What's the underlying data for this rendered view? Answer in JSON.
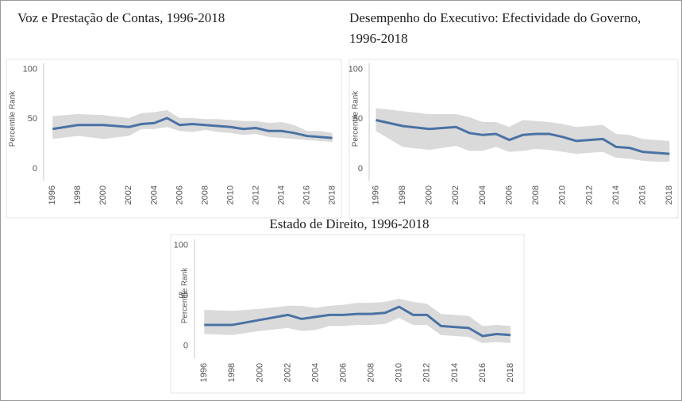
{
  "chart_data": [
    {
      "type": "line",
      "title": "Voz e Prestação de Contas, 1996-2018",
      "ylabel": "Percentile Rank",
      "x": [
        1996,
        1998,
        2000,
        2002,
        2003,
        2004,
        2005,
        2006,
        2007,
        2008,
        2009,
        2010,
        2011,
        2012,
        2013,
        2014,
        2015,
        2016,
        2017,
        2018
      ],
      "values": [
        40,
        44,
        44,
        42,
        45,
        46,
        51,
        44,
        45,
        44,
        43,
        42,
        40,
        41,
        38,
        38,
        36,
        33,
        32,
        31
      ],
      "lower": [
        30,
        33,
        30,
        33,
        40,
        40,
        42,
        38,
        37,
        39,
        37,
        36,
        34,
        35,
        32,
        31,
        30,
        29,
        28,
        27
      ],
      "upper": [
        53,
        55,
        54,
        51,
        56,
        57,
        59,
        51,
        51,
        50,
        50,
        49,
        48,
        48,
        46,
        47,
        44,
        38,
        38,
        36
      ],
      "color": "#4a72a4",
      "band_color": "#dadada",
      "xlim": [
        1995.3,
        2018.4
      ],
      "xticks": [
        1996,
        1998,
        2000,
        2002,
        2004,
        2006,
        2008,
        2010,
        2012,
        2014,
        2016,
        2018
      ],
      "ylim": [
        -12,
        106
      ],
      "yticks": [
        0,
        50,
        100
      ]
    },
    {
      "type": "line",
      "title": "Desempenho do Executivo: Efectividade do Governo, 1996-2018",
      "ylabel": "Percentile Rank",
      "x": [
        1996,
        1998,
        2000,
        2002,
        2003,
        2004,
        2005,
        2006,
        2007,
        2008,
        2009,
        2010,
        2011,
        2012,
        2013,
        2014,
        2015,
        2016,
        2017,
        2018
      ],
      "values": [
        49,
        43,
        40,
        42,
        36,
        34,
        35,
        29,
        34,
        35,
        35,
        32,
        28,
        29,
        30,
        22,
        21,
        17,
        16,
        15
      ],
      "lower": [
        38,
        22,
        19,
        23,
        18,
        18,
        22,
        17,
        18,
        20,
        19,
        17,
        15,
        16,
        17,
        11,
        10,
        8,
        7,
        7
      ],
      "upper": [
        61,
        58,
        55,
        55,
        52,
        47,
        47,
        42,
        49,
        48,
        47,
        45,
        42,
        43,
        44,
        35,
        34,
        30,
        29,
        28
      ],
      "color": "#4a72a4",
      "band_color": "#dadada",
      "xlim": [
        1995.5,
        2018.4
      ],
      "xticks": [
        1996,
        1998,
        2000,
        2002,
        2004,
        2006,
        2008,
        2010,
        2012,
        2014,
        2016,
        2018
      ],
      "ylim": [
        -12,
        106
      ],
      "yticks": [
        0,
        50,
        100
      ]
    },
    {
      "type": "line",
      "title": "Estado de Direito, 1996-2018",
      "ylabel": "Percentile Rank",
      "x": [
        1996,
        1998,
        2000,
        2002,
        2003,
        2004,
        2005,
        2006,
        2007,
        2008,
        2009,
        2010,
        2011,
        2012,
        2013,
        2014,
        2015,
        2016,
        2017,
        2018
      ],
      "values": [
        21,
        21,
        26,
        31,
        27,
        29,
        31,
        31,
        32,
        32,
        33,
        39,
        31,
        31,
        20,
        19,
        18,
        10,
        12,
        11
      ],
      "lower": [
        12,
        11,
        15,
        18,
        15,
        16,
        20,
        20,
        21,
        21,
        22,
        28,
        21,
        21,
        11,
        10,
        9,
        3,
        4,
        3
      ],
      "upper": [
        36,
        35,
        37,
        40,
        40,
        38,
        40,
        41,
        43,
        43,
        44,
        47,
        44,
        42,
        32,
        31,
        30,
        20,
        21,
        20
      ],
      "color": "#4a72a4",
      "band_color": "#dadada",
      "xlim": [
        1995.3,
        2018.4
      ],
      "xticks": [
        1996,
        1998,
        2000,
        2002,
        2004,
        2006,
        2008,
        2010,
        2012,
        2014,
        2016,
        2018
      ],
      "ylim": [
        -12,
        106
      ],
      "yticks": [
        0,
        50,
        100
      ]
    }
  ]
}
